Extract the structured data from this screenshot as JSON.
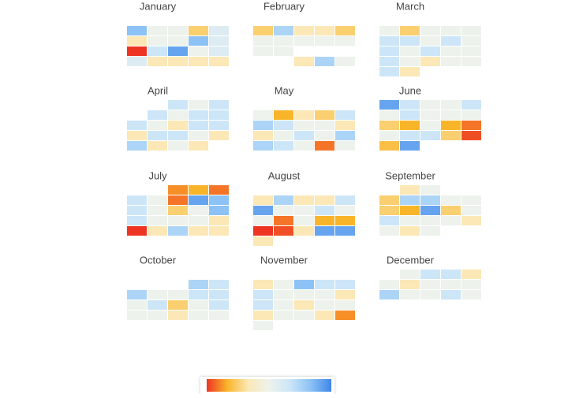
{
  "chart_data": {
    "type": "calendar_heatmap",
    "zlim": [
      -3,
      3
    ],
    "colorscale": [
      [
        -3,
        "#ee3524"
      ],
      [
        -2,
        "#f9b52a"
      ],
      [
        -1,
        "#fbe8b6"
      ],
      [
        0,
        "#edf2ec"
      ],
      [
        1,
        "#cce6f7"
      ],
      [
        2,
        "#8cc2f5"
      ],
      [
        3,
        "#3f86e8"
      ]
    ],
    "months": [
      {
        "name": "January",
        "weeks": [
          [
            null,
            null,
            null,
            null,
            null
          ],
          [
            2,
            0,
            0,
            -1.5,
            0.5
          ],
          [
            -1,
            0,
            0,
            2,
            0.5
          ],
          [
            -3,
            1,
            2.5,
            0,
            0.5
          ],
          [
            0.5,
            -1,
            -1,
            -1,
            -1
          ],
          [
            null,
            null,
            null,
            null,
            null
          ]
        ]
      },
      {
        "name": "February",
        "weeks": [
          [
            null,
            null,
            null,
            null,
            null
          ],
          [
            -1.5,
            1.5,
            -1,
            -1,
            -1.5
          ],
          [
            0,
            0,
            0,
            0,
            0
          ],
          [
            0,
            0,
            null,
            null,
            null
          ],
          [
            null,
            null,
            -1,
            1.5,
            0
          ],
          [
            null,
            null,
            null,
            null,
            null
          ]
        ]
      },
      {
        "name": "March",
        "weeks": [
          [
            null,
            null,
            null,
            null,
            null
          ],
          [
            0,
            -1.5,
            0,
            0,
            0
          ],
          [
            1,
            1,
            0,
            1,
            0
          ],
          [
            1,
            0,
            1,
            0,
            0
          ],
          [
            1,
            0,
            -1,
            0,
            0
          ],
          [
            1,
            -1,
            null,
            null,
            null
          ]
        ]
      },
      {
        "name": "April",
        "weeks": [
          [
            null,
            null,
            1,
            0,
            1
          ],
          [
            null,
            1,
            0,
            1,
            1
          ],
          [
            1,
            0,
            -1,
            1,
            1
          ],
          [
            -1,
            1,
            1,
            0,
            -1
          ],
          [
            1.5,
            -1,
            0,
            -1,
            null
          ],
          [
            null,
            null,
            null,
            null,
            null
          ]
        ]
      },
      {
        "name": "May",
        "weeks": [
          [
            null,
            null,
            null,
            null,
            null
          ],
          [
            0,
            -2,
            -1,
            -1.5,
            1
          ],
          [
            1.5,
            1,
            0,
            0,
            -1
          ],
          [
            -1,
            0,
            1,
            0,
            1.5
          ],
          [
            1.5,
            1,
            0,
            -2.5,
            0
          ],
          [
            null,
            null,
            null,
            null,
            null
          ]
        ]
      },
      {
        "name": "June",
        "weeks": [
          [
            2.5,
            1,
            0,
            0,
            1
          ],
          [
            0,
            1,
            0,
            0,
            0
          ],
          [
            -1.5,
            -2,
            0,
            -2,
            -2.5
          ],
          [
            0,
            1,
            1,
            -1.5,
            -2.8
          ],
          [
            -1.8,
            2.5,
            null,
            null,
            null
          ],
          [
            null,
            null,
            null,
            null,
            null
          ]
        ]
      },
      {
        "name": "July",
        "weeks": [
          [
            null,
            null,
            -2.3,
            -2,
            -2.5
          ],
          [
            1,
            0,
            -2.5,
            2.5,
            2
          ],
          [
            1,
            0,
            -1.5,
            0,
            2
          ],
          [
            1,
            0,
            0,
            0,
            -1
          ],
          [
            -3,
            -1,
            1.5,
            -1,
            -1
          ],
          [
            null,
            null,
            null,
            null,
            null
          ]
        ]
      },
      {
        "name": "August",
        "weeks": [
          [
            null,
            null,
            null,
            null,
            null
          ],
          [
            -1,
            1.5,
            -1,
            -1,
            1
          ],
          [
            2.5,
            0,
            0,
            1,
            0
          ],
          [
            0,
            -2.5,
            0,
            -2,
            -2
          ],
          [
            -3,
            -2.8,
            -1,
            2.5,
            2.5
          ],
          [
            -1,
            null,
            null,
            null,
            null
          ]
        ]
      },
      {
        "name": "September",
        "weeks": [
          [
            null,
            -1,
            0,
            null,
            null
          ],
          [
            -1.5,
            1.5,
            1.5,
            0,
            0
          ],
          [
            -1.5,
            -2,
            2.5,
            -1.5,
            0
          ],
          [
            1,
            0,
            0,
            0,
            -1
          ],
          [
            0,
            -1,
            0,
            null,
            null
          ],
          [
            null,
            null,
            null,
            null,
            null
          ]
        ]
      },
      {
        "name": "October",
        "weeks": [
          [
            null,
            null,
            null,
            null,
            null
          ],
          [
            null,
            null,
            null,
            1.5,
            1
          ],
          [
            1.5,
            0,
            0,
            1,
            1
          ],
          [
            0,
            1,
            -1.5,
            0,
            1
          ],
          [
            0,
            0,
            -1,
            0,
            0
          ],
          [
            null,
            null,
            null,
            null,
            null
          ]
        ]
      },
      {
        "name": "November",
        "weeks": [
          [
            null,
            null,
            null,
            null,
            null
          ],
          [
            -1,
            0,
            2,
            1,
            1
          ],
          [
            1,
            0,
            0,
            0,
            -1
          ],
          [
            1,
            0,
            -1,
            0,
            0
          ],
          [
            -1,
            0,
            0,
            -1,
            -2.3
          ],
          [
            0,
            null,
            null,
            null,
            null
          ]
        ]
      },
      {
        "name": "December",
        "weeks": [
          [
            null,
            0,
            1,
            1,
            -1
          ],
          [
            0,
            -1,
            0,
            0,
            0
          ],
          [
            1.5,
            0,
            0,
            1,
            0
          ],
          [
            null,
            null,
            null,
            null,
            null
          ],
          [
            null,
            null,
            null,
            null,
            null
          ],
          [
            null,
            null,
            null,
            null,
            null
          ]
        ]
      }
    ]
  }
}
